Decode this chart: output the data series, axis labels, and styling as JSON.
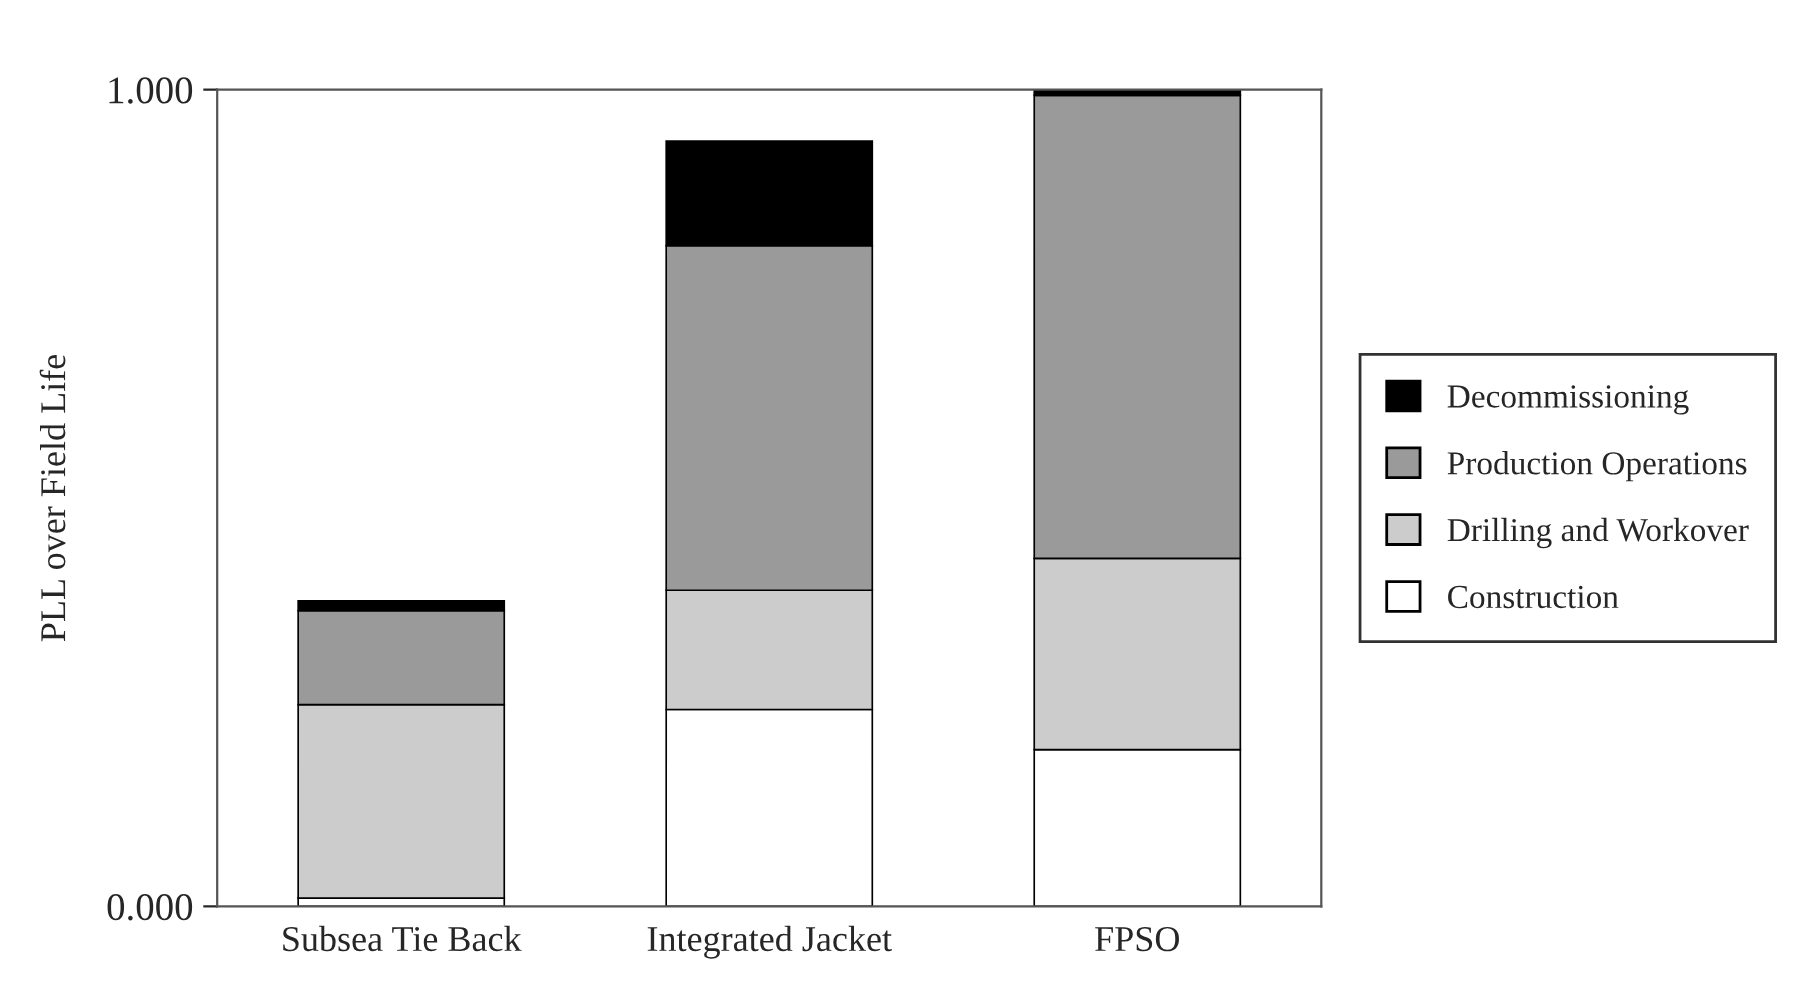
{
  "chart_data": {
    "type": "bar",
    "stacked": true,
    "ylabel": "PLL over Field Life",
    "categories": [
      "Subsea Tie Back",
      "Integrated Jacket",
      "FPSO"
    ],
    "series": [
      {
        "name": "Construction",
        "color": "#ffffff",
        "values": [
          0.01,
          0.241,
          0.192
        ]
      },
      {
        "name": "Drilling and Workover",
        "color": "#cccccc",
        "values": [
          0.237,
          0.146,
          0.234
        ]
      },
      {
        "name": "Production Operations",
        "color": "#9a9a9a",
        "values": [
          0.115,
          0.422,
          0.567
        ]
      },
      {
        "name": "Decommissioning",
        "color": "#000000",
        "values": [
          0.012,
          0.128,
          0.007
        ]
      }
    ],
    "ylim": [
      0,
      1
    ],
    "yticks": [
      {
        "value": 0,
        "label": "0.000"
      },
      {
        "value": 1,
        "label": "1.000"
      }
    ],
    "grid": false,
    "legend": "right"
  }
}
